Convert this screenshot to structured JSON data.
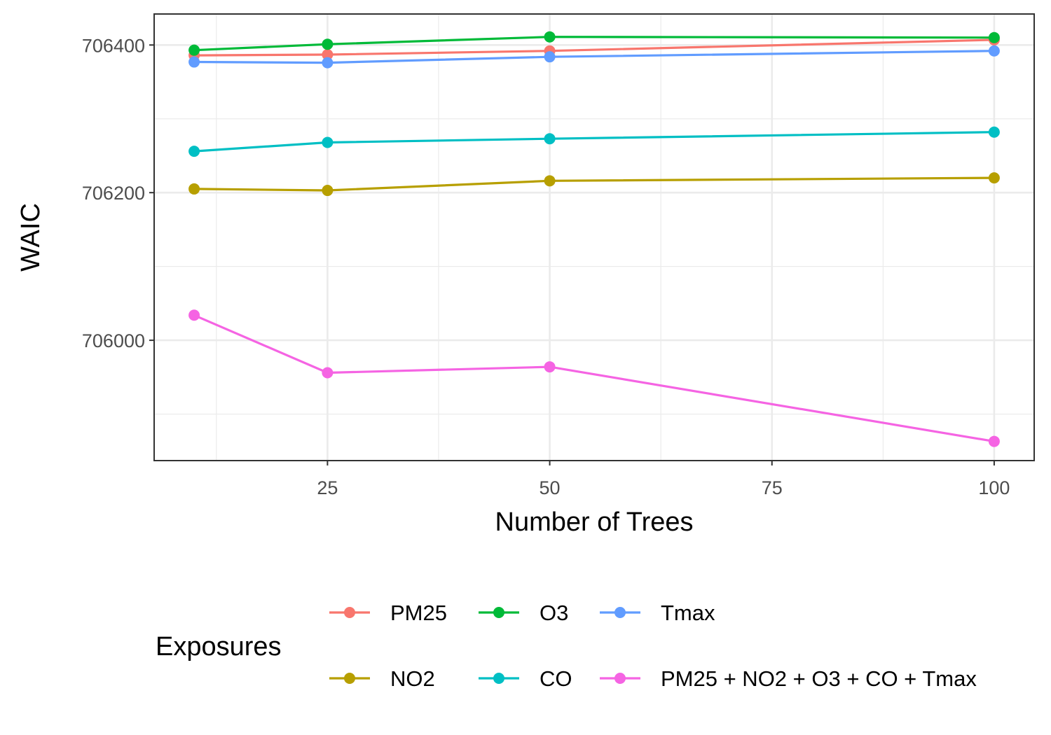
{
  "chart_data": {
    "type": "line",
    "title": "",
    "xlabel": "Number of Trees",
    "ylabel": "WAIC",
    "x": [
      10,
      25,
      50,
      100
    ],
    "xlim": [
      5.5,
      104.5
    ],
    "ylim": [
      705837,
      706442
    ],
    "xticks": [
      25,
      50,
      75,
      100
    ],
    "xtick_labels": [
      "25",
      "50",
      "75",
      "100"
    ],
    "yticks": [
      706000,
      706200,
      706400
    ],
    "ytick_labels": [
      "706000",
      "706200",
      "706400"
    ],
    "grid": true,
    "legend": {
      "title": "Exposures",
      "position": "bottom"
    },
    "series": [
      {
        "name": "PM25",
        "color": "#F8766D",
        "values": [
          706386,
          706387,
          706392,
          706407
        ]
      },
      {
        "name": "O3",
        "color": "#00BA38",
        "values": [
          706393,
          706401,
          706411,
          706410
        ]
      },
      {
        "name": "Tmax",
        "color": "#619CFF",
        "values": [
          706377,
          706376,
          706384,
          706392
        ]
      },
      {
        "name": "NO2",
        "color": "#B79F00",
        "values": [
          706205,
          706203,
          706216,
          706220
        ]
      },
      {
        "name": "CO",
        "color": "#00BFC4",
        "values": [
          706256,
          706268,
          706273,
          706282
        ]
      },
      {
        "name": "PM25 + NO2 + O3 + CO + Tmax",
        "color": "#F564E3",
        "values": [
          706034,
          705956,
          705964,
          705863
        ]
      }
    ]
  }
}
